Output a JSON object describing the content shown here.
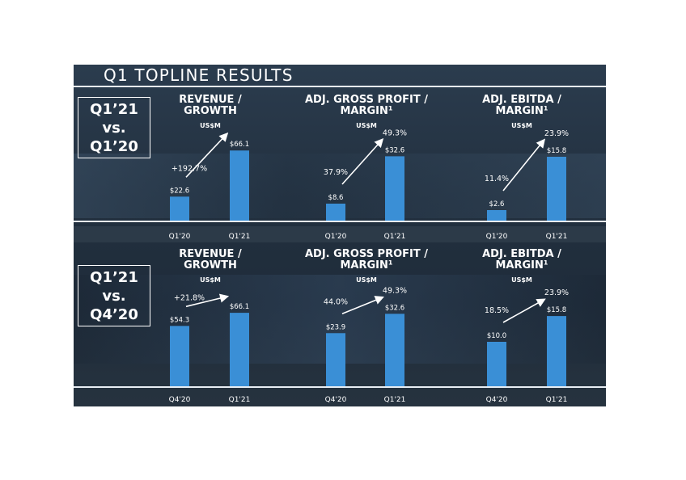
{
  "slide": {
    "title": "Q1 TOPLINE RESULTS",
    "sections": [
      {
        "label_lines": [
          "Q1’21",
          "vs.",
          "Q1’20"
        ]
      },
      {
        "label_lines": [
          "Q1’21",
          "vs.",
          "Q4’20"
        ]
      }
    ]
  },
  "colors": {
    "bar": "#3a8fd6",
    "text": "#ffffff",
    "axis_labels": "#ffffff"
  },
  "chart_data": [
    {
      "type": "bar",
      "title": "REVENUE / GROWTH",
      "unit": "US$M",
      "categories": [
        "Q1'20",
        "Q1'21"
      ],
      "values": [
        22.6,
        66.1
      ],
      "value_labels": [
        "$22.6",
        "$66.1"
      ],
      "change_label": "+192.7%",
      "ylim": [
        0,
        80
      ]
    },
    {
      "type": "bar",
      "title": "ADJ. GROSS PROFIT / MARGIN¹",
      "unit": "US$M",
      "categories": [
        "Q1'20",
        "Q1'21"
      ],
      "values": [
        8.6,
        32.6
      ],
      "value_labels": [
        "$8.6",
        "$32.6"
      ],
      "margins": [
        "37.9%",
        "49.3%"
      ],
      "ylim": [
        0,
        43
      ]
    },
    {
      "type": "bar",
      "title": "ADJ. EBITDA / MARGIN¹",
      "unit": "US$M",
      "categories": [
        "Q1'20",
        "Q1'21"
      ],
      "values": [
        2.6,
        15.8
      ],
      "value_labels": [
        "$2.6",
        "$15.8"
      ],
      "margins": [
        "11.4%",
        "23.9%"
      ],
      "ylim": [
        0,
        21
      ]
    },
    {
      "type": "bar",
      "title": "REVENUE / GROWTH",
      "unit": "US$M",
      "categories": [
        "Q4'20",
        "Q1'21"
      ],
      "values": [
        54.3,
        66.1
      ],
      "value_labels": [
        "$54.3",
        "$66.1"
      ],
      "change_label": "+21.8%",
      "ylim": [
        0,
        80
      ]
    },
    {
      "type": "bar",
      "title": "ADJ. GROSS PROFIT / MARGIN¹",
      "unit": "US$M",
      "categories": [
        "Q4'20",
        "Q1'21"
      ],
      "values": [
        23.9,
        32.6
      ],
      "value_labels": [
        "$23.9",
        "$32.6"
      ],
      "margins": [
        "44.0%",
        "49.3%"
      ],
      "ylim": [
        0,
        40
      ]
    },
    {
      "type": "bar",
      "title": "ADJ. EBITDA / MARGIN¹",
      "unit": "US$M",
      "categories": [
        "Q4'20",
        "Q1'21"
      ],
      "values": [
        10.0,
        15.8
      ],
      "value_labels": [
        "$10.0",
        "$15.8"
      ],
      "margins": [
        "18.5%",
        "23.9%"
      ],
      "ylim": [
        0,
        20
      ]
    }
  ]
}
